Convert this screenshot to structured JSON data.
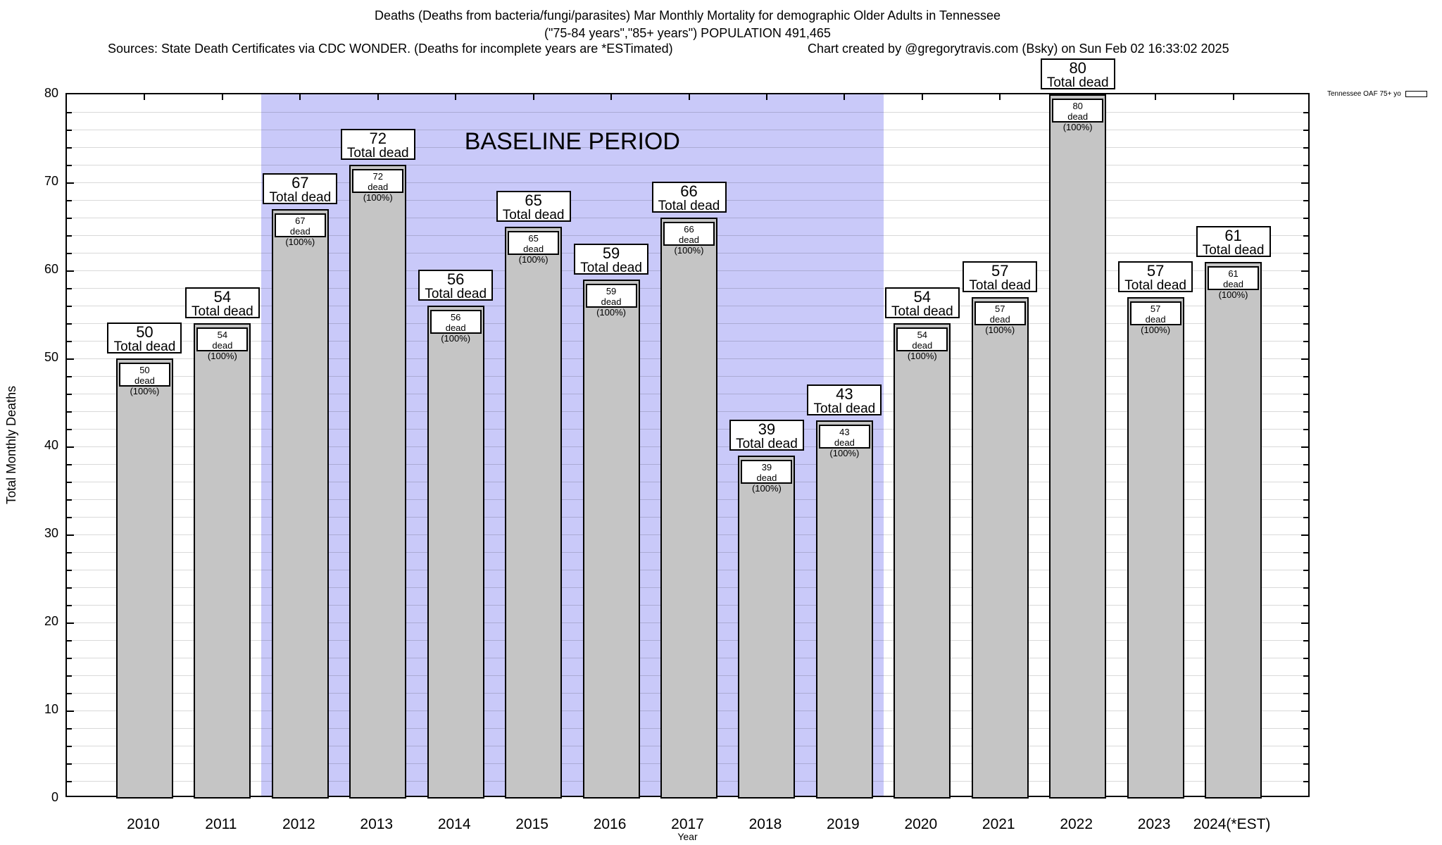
{
  "header": {
    "title_line1": "Deaths (Deaths from bacteria/fungi/parasites) Mar Monthly Mortality for demographic Older Adults in Tennessee",
    "title_line2": "(\"75-84 years\",\"85+ years\") POPULATION 491,465",
    "sources": "Sources: State Death Certificates via CDC WONDER. (Deaths for incomplete years are *ESTimated)",
    "credit": "Chart created by @gregorytravis.com (Bsky) on Sun Feb 02 16:33:02 2025"
  },
  "legend": {
    "label": "Tennessee OAF 75+ yo"
  },
  "axes": {
    "y_label": "Total Monthly Deaths",
    "x_label": "Year"
  },
  "annotations": {
    "total_suffix": "Total dead",
    "pct_suffix": "dead (100%)"
  },
  "colors": {
    "bar_fill": "#c5c5c5",
    "bar_border": "#000000",
    "baseline_fill": "#c9c9f9",
    "gridline": "rgba(0,0,0,0.15)",
    "text": "#000000"
  },
  "chart_data": {
    "type": "bar",
    "title": "Deaths (Deaths from bacteria/fungi/parasites) Mar Monthly Mortality for demographic Older Adults in Tennessee (\"75-84 years\",\"85+ years\") POPULATION 491,465",
    "xlabel": "Year",
    "ylabel": "Total Monthly Deaths",
    "categories": [
      "2010",
      "2011",
      "2012",
      "2013",
      "2014",
      "2015",
      "2016",
      "2017",
      "2018",
      "2019",
      "2020",
      "2021",
      "2022",
      "2023",
      "2024(*EST)"
    ],
    "series": [
      {
        "name": "Tennessee OAF 75+ yo",
        "values": [
          50,
          54,
          67,
          72,
          56,
          65,
          59,
          66,
          39,
          43,
          54,
          57,
          80,
          57,
          61
        ]
      }
    ],
    "bar_label_top": [
      "50",
      "54",
      "67",
      "72",
      "56",
      "65",
      "59",
      "66",
      "39",
      "43",
      "54",
      "57",
      "80",
      "57",
      "61"
    ],
    "ylim": [
      0,
      80
    ],
    "ytick_major_step": 10,
    "ytick_minor_step": 2,
    "xlim_years": [
      2009,
      2025
    ],
    "grid": "horizontal-minor",
    "legend_position": "top-right-outside",
    "baseline_region": {
      "from_year": 2011.5,
      "to_year": 2019.5,
      "label": "BASELINE PERIOD"
    }
  }
}
